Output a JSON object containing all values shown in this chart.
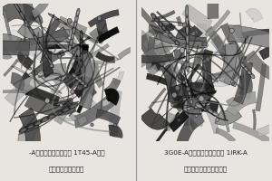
{
  "background_color": "#e8e5e0",
  "divider_color": "#999999",
  "caption_left_line1": "-A（浅色）和筛选蛋白 1T45-A（深",
  "caption_left_line2": "色）的空间迭代比较",
  "caption_right_line1": "3G0E-A（浅色）和筛选蛋白 1IRK-A",
  "caption_right_line2": "（深色）的空间迭代比较",
  "caption_fontsize": 5.2,
  "fig_width": 3.0,
  "fig_height": 2.0,
  "dpi": 100
}
